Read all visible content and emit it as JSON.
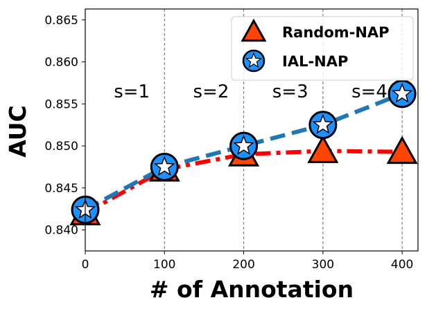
{
  "chart_data": {
    "type": "line",
    "xlabel": "# of Annotation",
    "ylabel": "AUC",
    "xlim": [
      0,
      420
    ],
    "ylim": [
      0.8375,
      0.8663
    ],
    "x_ticks": [
      0,
      100,
      200,
      300,
      400
    ],
    "x_tick_labels": [
      "0",
      "100",
      "200",
      "300",
      "400"
    ],
    "y_ticks": [
      0.84,
      0.845,
      0.85,
      0.855,
      0.86,
      0.865
    ],
    "y_tick_labels": [
      "0.840",
      "0.845",
      "0.850",
      "0.855",
      "0.860",
      "0.865"
    ],
    "grid": false,
    "legend_position": "top-right",
    "vertical_lines": [
      100,
      200,
      300,
      400
    ],
    "annotations": [
      {
        "text": "s=1",
        "x": 50,
        "y": 0.8565
      },
      {
        "text": "s=2",
        "x": 150,
        "y": 0.8565
      },
      {
        "text": "s=3",
        "x": 250,
        "y": 0.8565
      },
      {
        "text": "s=4",
        "x": 350,
        "y": 0.8565
      }
    ],
    "series": [
      {
        "name": "Random-NAP",
        "marker": "triangle",
        "line_style": "dash-dot",
        "line_color": "#ff0000",
        "marker_color": "#ff4500",
        "x": [
          0,
          100,
          200,
          300,
          400
        ],
        "y": [
          0.842,
          0.8472,
          0.849,
          0.8494,
          0.8493
        ]
      },
      {
        "name": "IAL-NAP",
        "marker": "star-in-circle",
        "line_style": "dashed",
        "line_color": "#1f77b4",
        "marker_color": "#1e90ff",
        "x": [
          0,
          100,
          200,
          300,
          400
        ],
        "y": [
          0.8424,
          0.8475,
          0.85,
          0.8525,
          0.8562
        ]
      }
    ]
  }
}
